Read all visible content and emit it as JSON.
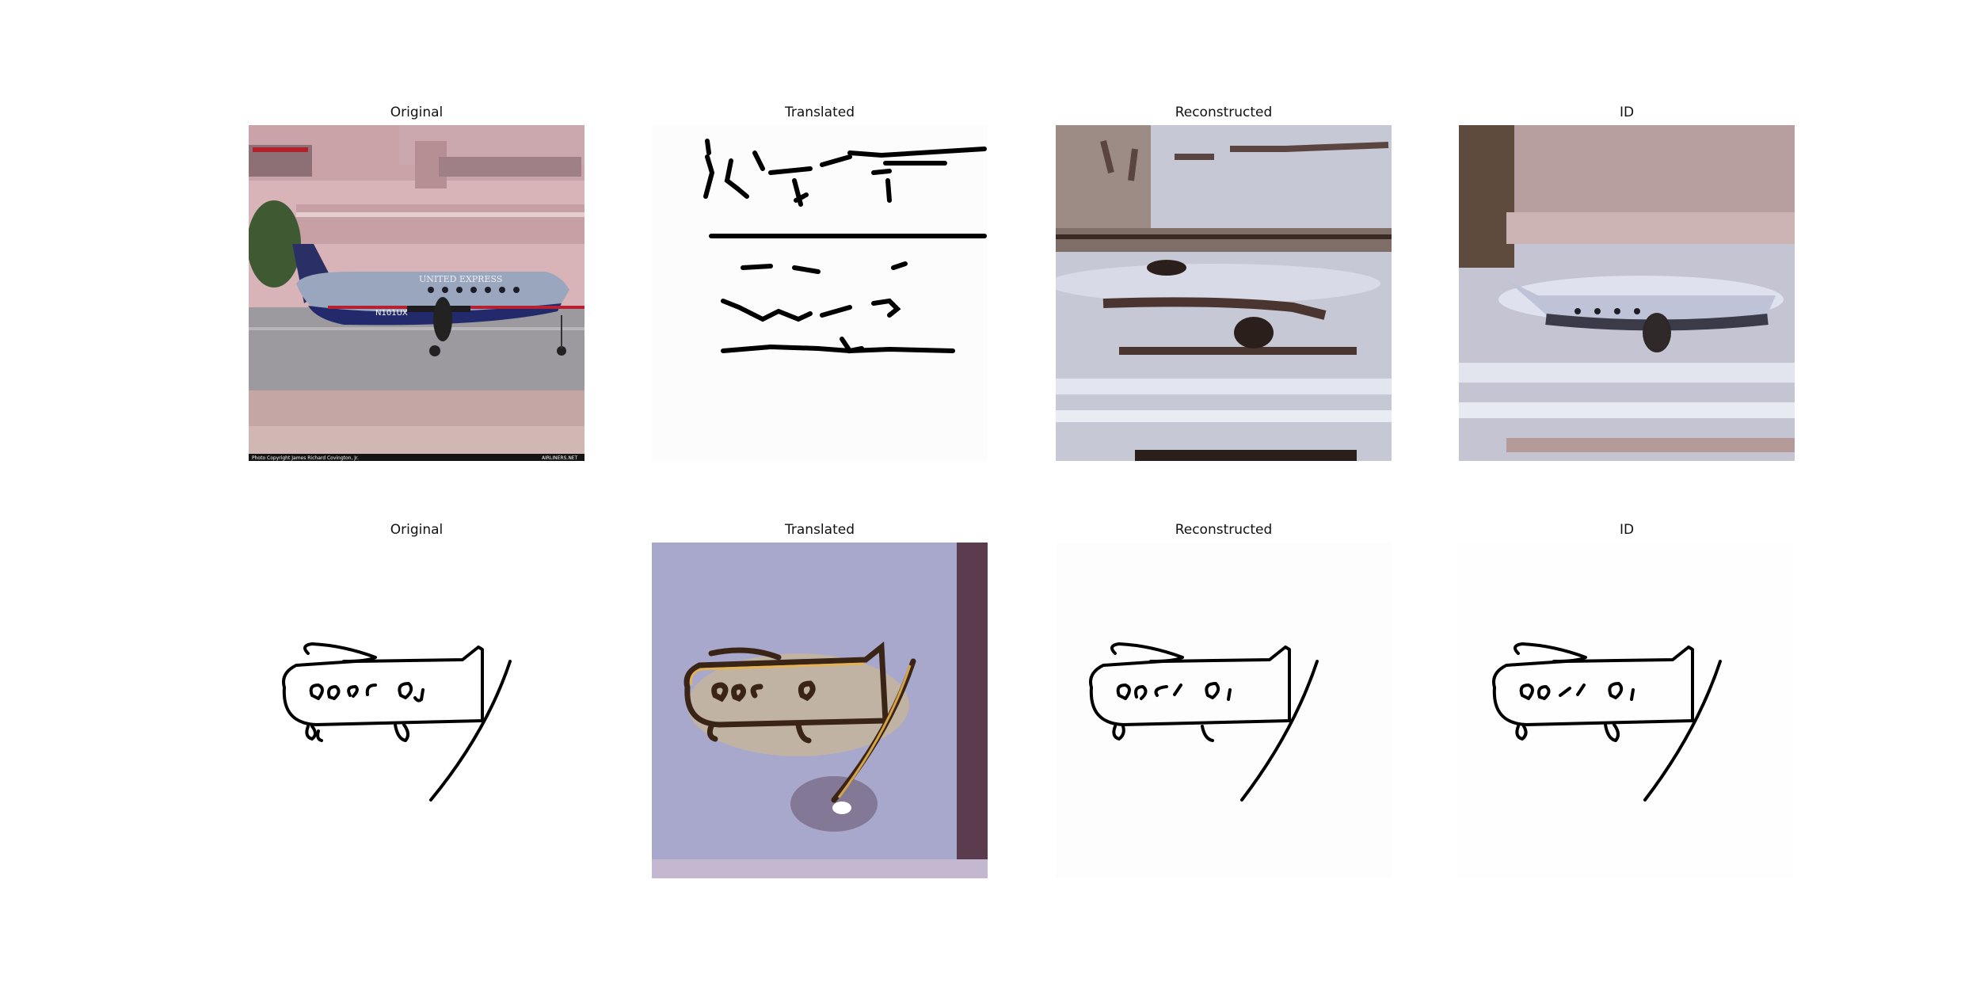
{
  "figure": {
    "rows": [
      {
        "panels": [
          {
            "title": "Original",
            "kind": "photo"
          },
          {
            "title": "Translated",
            "kind": "sketch-from-photo"
          },
          {
            "title": "Reconstructed",
            "kind": "blurry-photo"
          },
          {
            "title": "ID",
            "kind": "blurry-photo"
          }
        ]
      },
      {
        "panels": [
          {
            "title": "Original",
            "kind": "sketch"
          },
          {
            "title": "Translated",
            "kind": "photo-from-sketch"
          },
          {
            "title": "Reconstructed",
            "kind": "sketch"
          },
          {
            "title": "ID",
            "kind": "sketch"
          }
        ]
      }
    ]
  },
  "photo_overlay": {
    "livery_text": "UNITED EXPRESS",
    "tail_number": "N101UX",
    "caption_left": "Photo Copyright James Richard Covington, Jr.",
    "caption_right": "AIRLINERS.NET"
  },
  "colors": {
    "sky_building": "#d8b4b8",
    "fuselage": "#9aa6bd",
    "belly_stripe": "#232a6b",
    "tarmac": "#9c9a9e",
    "sketch_line": "#000000",
    "translated_bg": "#a8a8cc"
  }
}
